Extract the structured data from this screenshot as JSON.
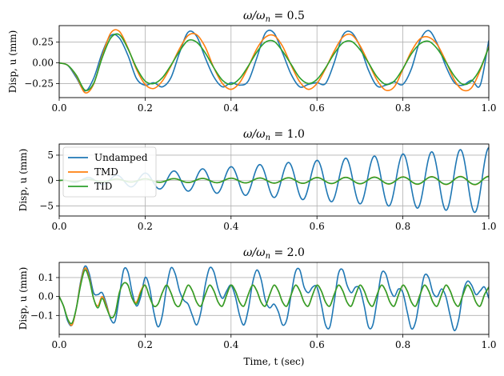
{
  "chart_data": [
    {
      "type": "line",
      "title": "ω/ω_n = 0.5",
      "title_main": "ω/ω",
      "title_sub": "n",
      "title_tail": " = 0.5",
      "xlabel": "",
      "ylabel": "Disp, u (mm)",
      "xlim": [
        0,
        1
      ],
      "ylim": [
        -0.42,
        0.45
      ],
      "xticks": [
        0.0,
        0.2,
        0.4,
        0.6,
        0.8,
        1.0
      ],
      "xtick_labels": [
        "0.0",
        "0.2",
        "0.4",
        "0.6",
        "0.8",
        "1.0"
      ],
      "yticks": [
        -0.25,
        0.0,
        0.25
      ],
      "ytick_labels": [
        "−0.25",
        "0.00",
        "0.25"
      ],
      "grid": true,
      "legend": null,
      "x": [
        0,
        0.02,
        0.04,
        0.06,
        0.08,
        0.1,
        0.12,
        0.14,
        0.16,
        0.18,
        0.2,
        0.22,
        0.24,
        0.26,
        0.28,
        0.3,
        0.32,
        0.34,
        0.36,
        0.38,
        0.4,
        0.42,
        0.44,
        0.46,
        0.48,
        0.5,
        0.52,
        0.54,
        0.56,
        0.58,
        0.6,
        0.62,
        0.64,
        0.66,
        0.68,
        0.7,
        0.72,
        0.74,
        0.76,
        0.78,
        0.8,
        0.82,
        0.84,
        0.86,
        0.88,
        0.9,
        0.92,
        0.94,
        0.96,
        0.98,
        1.0
      ],
      "series": [
        {
          "name": "Undamped",
          "color": "#1f77b4",
          "values": [
            0.0,
            -0.03,
            -0.18,
            -0.34,
            -0.19,
            0.12,
            0.33,
            0.3,
            0.09,
            -0.19,
            -0.27,
            -0.24,
            -0.29,
            -0.18,
            0.12,
            0.37,
            0.32,
            0.06,
            -0.17,
            -0.29,
            -0.24,
            -0.27,
            -0.22,
            0.06,
            0.36,
            0.36,
            0.12,
            -0.14,
            -0.29,
            -0.26,
            -0.24,
            -0.25,
            0.0,
            0.33,
            0.37,
            0.2,
            -0.09,
            -0.28,
            -0.27,
            -0.23,
            -0.26,
            -0.07,
            0.27,
            0.39,
            0.23,
            -0.04,
            -0.24,
            -0.27,
            -0.21,
            -0.27,
            0.27
          ]
        },
        {
          "name": "TMD",
          "color": "#ff7f0e",
          "values": [
            0.0,
            -0.03,
            -0.16,
            -0.36,
            -0.26,
            0.08,
            0.36,
            0.38,
            0.18,
            -0.08,
            -0.26,
            -0.31,
            -0.22,
            -0.04,
            0.17,
            0.33,
            0.34,
            0.19,
            -0.06,
            -0.25,
            -0.32,
            -0.24,
            -0.05,
            0.17,
            0.31,
            0.33,
            0.2,
            -0.03,
            -0.23,
            -0.32,
            -0.25,
            -0.07,
            0.14,
            0.31,
            0.34,
            0.21,
            0.0,
            -0.21,
            -0.33,
            -0.29,
            -0.08,
            0.14,
            0.29,
            0.31,
            0.22,
            0.02,
            -0.21,
            -0.33,
            -0.3,
            -0.09,
            0.2
          ]
        },
        {
          "name": "TID",
          "color": "#2ca02c",
          "values": [
            0.0,
            -0.03,
            -0.15,
            -0.33,
            -0.25,
            0.06,
            0.3,
            0.34,
            0.17,
            -0.06,
            -0.22,
            -0.25,
            -0.18,
            -0.03,
            0.14,
            0.27,
            0.25,
            0.12,
            -0.06,
            -0.21,
            -0.26,
            -0.19,
            -0.04,
            0.13,
            0.25,
            0.26,
            0.14,
            -0.02,
            -0.18,
            -0.25,
            -0.2,
            -0.06,
            0.11,
            0.24,
            0.26,
            0.16,
            0.0,
            -0.17,
            -0.26,
            -0.22,
            -0.07,
            0.11,
            0.23,
            0.26,
            0.17,
            0.01,
            -0.16,
            -0.26,
            -0.22,
            -0.07,
            0.19
          ]
        }
      ]
    },
    {
      "type": "line",
      "title": "ω/ω_n = 1.0",
      "title_main": "ω/ω",
      "title_sub": "n",
      "title_tail": " = 1.0",
      "xlabel": "",
      "ylabel": "Disp, u (mm)",
      "xlim": [
        0,
        1
      ],
      "ylim": [
        -7,
        7.2
      ],
      "xticks": [
        0.0,
        0.2,
        0.4,
        0.6,
        0.8,
        1.0
      ],
      "xtick_labels": [
        "0.0",
        "0.2",
        "0.4",
        "0.6",
        "0.8",
        "1.0"
      ],
      "yticks": [
        -5,
        0,
        5
      ],
      "ytick_labels": [
        "−5",
        "0",
        "5"
      ],
      "grid": true,
      "legend": {
        "placement": "upper-left",
        "entries": [
          "Undamped",
          "TMD",
          "TID"
        ]
      },
      "wave": {
        "period": 0.0667,
        "phase": -0.0167,
        "undamped_envelope": [
          0.2,
          6.5
        ],
        "tmd_envelope": [
          0.2,
          0.85
        ],
        "tid_envelope": [
          0.2,
          0.8
        ]
      },
      "series": [
        {
          "name": "Undamped",
          "color": "#1f77b4"
        },
        {
          "name": "TMD",
          "color": "#ff7f0e"
        },
        {
          "name": "TID",
          "color": "#2ca02c"
        }
      ]
    },
    {
      "type": "line",
      "title": "ω/ω_n = 2.0",
      "title_main": "ω/ω",
      "title_sub": "n",
      "title_tail": " = 2.0",
      "xlabel": "Time, t (sec)",
      "ylabel": "Disp, u (mm)",
      "xlim": [
        0,
        1
      ],
      "ylim": [
        -0.2,
        0.18
      ],
      "xticks": [
        0.0,
        0.2,
        0.4,
        0.6,
        0.8,
        1.0
      ],
      "xtick_labels": [
        "0.0",
        "0.2",
        "0.4",
        "0.6",
        "0.8",
        "1.0"
      ],
      "yticks": [
        -0.1,
        0.0,
        0.1
      ],
      "ytick_labels": [
        "−0.1",
        "0.0",
        "0.1"
      ],
      "grid": true,
      "legend": null,
      "x": [
        0,
        0.01,
        0.02,
        0.03,
        0.04,
        0.05,
        0.06,
        0.07,
        0.08,
        0.09,
        0.1,
        0.11,
        0.12,
        0.13,
        0.14,
        0.15,
        0.16,
        0.17,
        0.18,
        0.19,
        0.2,
        0.21,
        0.22,
        0.23,
        0.24,
        0.25,
        0.26,
        0.27,
        0.28,
        0.29,
        0.3,
        0.31,
        0.32,
        0.33,
        0.34,
        0.35,
        0.36,
        0.37,
        0.38,
        0.39,
        0.4,
        0.41,
        0.42,
        0.43,
        0.44,
        0.45,
        0.46,
        0.47,
        0.48,
        0.49,
        0.5,
        0.51,
        0.52,
        0.53,
        0.54,
        0.55,
        0.56,
        0.57,
        0.58,
        0.59,
        0.6,
        0.61,
        0.62,
        0.63,
        0.64,
        0.65,
        0.66,
        0.67,
        0.68,
        0.69,
        0.7,
        0.71,
        0.72,
        0.73,
        0.74,
        0.75,
        0.76,
        0.77,
        0.78,
        0.79,
        0.8,
        0.81,
        0.82,
        0.83,
        0.84,
        0.85,
        0.86,
        0.87,
        0.88,
        0.89,
        0.9,
        0.91,
        0.92,
        0.93,
        0.94,
        0.95,
        0.96,
        0.97,
        0.98,
        0.99,
        1.0
      ],
      "series": [
        {
          "name": "Undamped",
          "color": "#1f77b4",
          "values": [
            0.0,
            -0.05,
            -0.13,
            -0.15,
            -0.06,
            0.08,
            0.16,
            0.12,
            0.02,
            0.01,
            0.02,
            -0.04,
            -0.12,
            -0.13,
            0.0,
            0.14,
            0.13,
            0.02,
            -0.05,
            0.0,
            0.1,
            0.05,
            -0.08,
            -0.16,
            -0.1,
            0.05,
            0.15,
            0.12,
            0.03,
            -0.02,
            -0.04,
            -0.1,
            -0.15,
            -0.08,
            0.06,
            0.15,
            0.13,
            0.04,
            -0.01,
            0.03,
            0.06,
            0.0,
            -0.1,
            -0.15,
            -0.07,
            0.07,
            0.14,
            0.09,
            -0.02,
            -0.06,
            -0.04,
            -0.08,
            -0.15,
            -0.12,
            0.01,
            0.13,
            0.14,
            0.05,
            0.02,
            0.05,
            0.05,
            -0.04,
            -0.15,
            -0.16,
            -0.03,
            0.12,
            0.14,
            0.06,
            0.02,
            0.05,
            0.04,
            -0.05,
            -0.16,
            -0.15,
            -0.02,
            0.12,
            0.12,
            0.04,
            0.0,
            0.04,
            0.02,
            -0.08,
            -0.17,
            -0.13,
            0.0,
            0.11,
            0.1,
            0.02,
            0.0,
            0.04,
            0.0,
            -0.1,
            -0.18,
            -0.12,
            0.02,
            0.08,
            0.06,
            0.01,
            0.03,
            0.05,
            -0.01
          ]
        },
        {
          "name": "TMD",
          "color": "#ff7f0e",
          "values": [
            0.0,
            -0.05,
            -0.12,
            -0.15,
            -0.06,
            0.07,
            0.15,
            0.1,
            -0.01,
            -0.05,
            0.0,
            -0.05,
            -0.11,
            -0.09,
            0.02,
            0.07,
            0.06,
            -0.01,
            -0.03,
            0.03,
            0.06,
            0.0,
            -0.05,
            -0.04,
            0.02,
            0.06,
            0.02,
            -0.04,
            -0.05,
            0.01,
            0.06,
            0.03,
            -0.03,
            -0.05,
            0.01,
            0.06,
            0.03,
            -0.03,
            -0.05,
            0.01,
            0.06,
            0.03,
            -0.03,
            -0.05,
            0.01,
            0.06,
            0.03,
            -0.03,
            -0.05,
            0.01,
            0.06,
            0.03,
            -0.03,
            -0.05,
            0.01,
            0.06,
            0.03,
            -0.03,
            -0.05,
            0.01,
            0.06,
            0.03,
            -0.03,
            -0.05,
            0.01,
            0.06,
            0.03,
            -0.03,
            -0.05,
            0.01,
            0.06,
            0.03,
            -0.03,
            -0.05,
            0.01,
            0.06,
            0.03,
            -0.03,
            -0.05,
            0.01,
            0.06,
            0.03,
            -0.03,
            -0.05,
            0.01,
            0.06,
            0.03,
            -0.03,
            -0.05,
            0.01,
            0.06,
            0.03,
            -0.03,
            -0.05,
            0.01,
            0.06,
            0.03,
            -0.03,
            -0.05,
            0.01,
            0.05
          ]
        },
        {
          "name": "TID",
          "color": "#2ca02c",
          "values": [
            0.0,
            -0.05,
            -0.12,
            -0.14,
            -0.06,
            0.06,
            0.14,
            0.09,
            -0.01,
            -0.06,
            -0.01,
            -0.06,
            -0.11,
            -0.09,
            0.02,
            0.07,
            0.06,
            -0.01,
            -0.04,
            0.02,
            0.06,
            0.0,
            -0.05,
            -0.04,
            0.02,
            0.06,
            0.02,
            -0.04,
            -0.05,
            0.01,
            0.06,
            0.03,
            -0.03,
            -0.05,
            0.01,
            0.06,
            0.03,
            -0.03,
            -0.05,
            0.01,
            0.06,
            0.03,
            -0.03,
            -0.05,
            0.01,
            0.06,
            0.03,
            -0.03,
            -0.05,
            0.01,
            0.06,
            0.03,
            -0.03,
            -0.05,
            0.01,
            0.06,
            0.03,
            -0.03,
            -0.05,
            0.01,
            0.06,
            0.03,
            -0.03,
            -0.05,
            0.01,
            0.06,
            0.03,
            -0.03,
            -0.05,
            0.01,
            0.06,
            0.03,
            -0.03,
            -0.05,
            0.01,
            0.06,
            0.03,
            -0.03,
            -0.05,
            0.01,
            0.06,
            0.03,
            -0.03,
            -0.05,
            0.01,
            0.06,
            0.03,
            -0.03,
            -0.05,
            0.01,
            0.06,
            0.03,
            -0.03,
            -0.05,
            0.01,
            0.06,
            0.03,
            -0.03,
            -0.05,
            0.01,
            0.05
          ]
        }
      ]
    }
  ]
}
